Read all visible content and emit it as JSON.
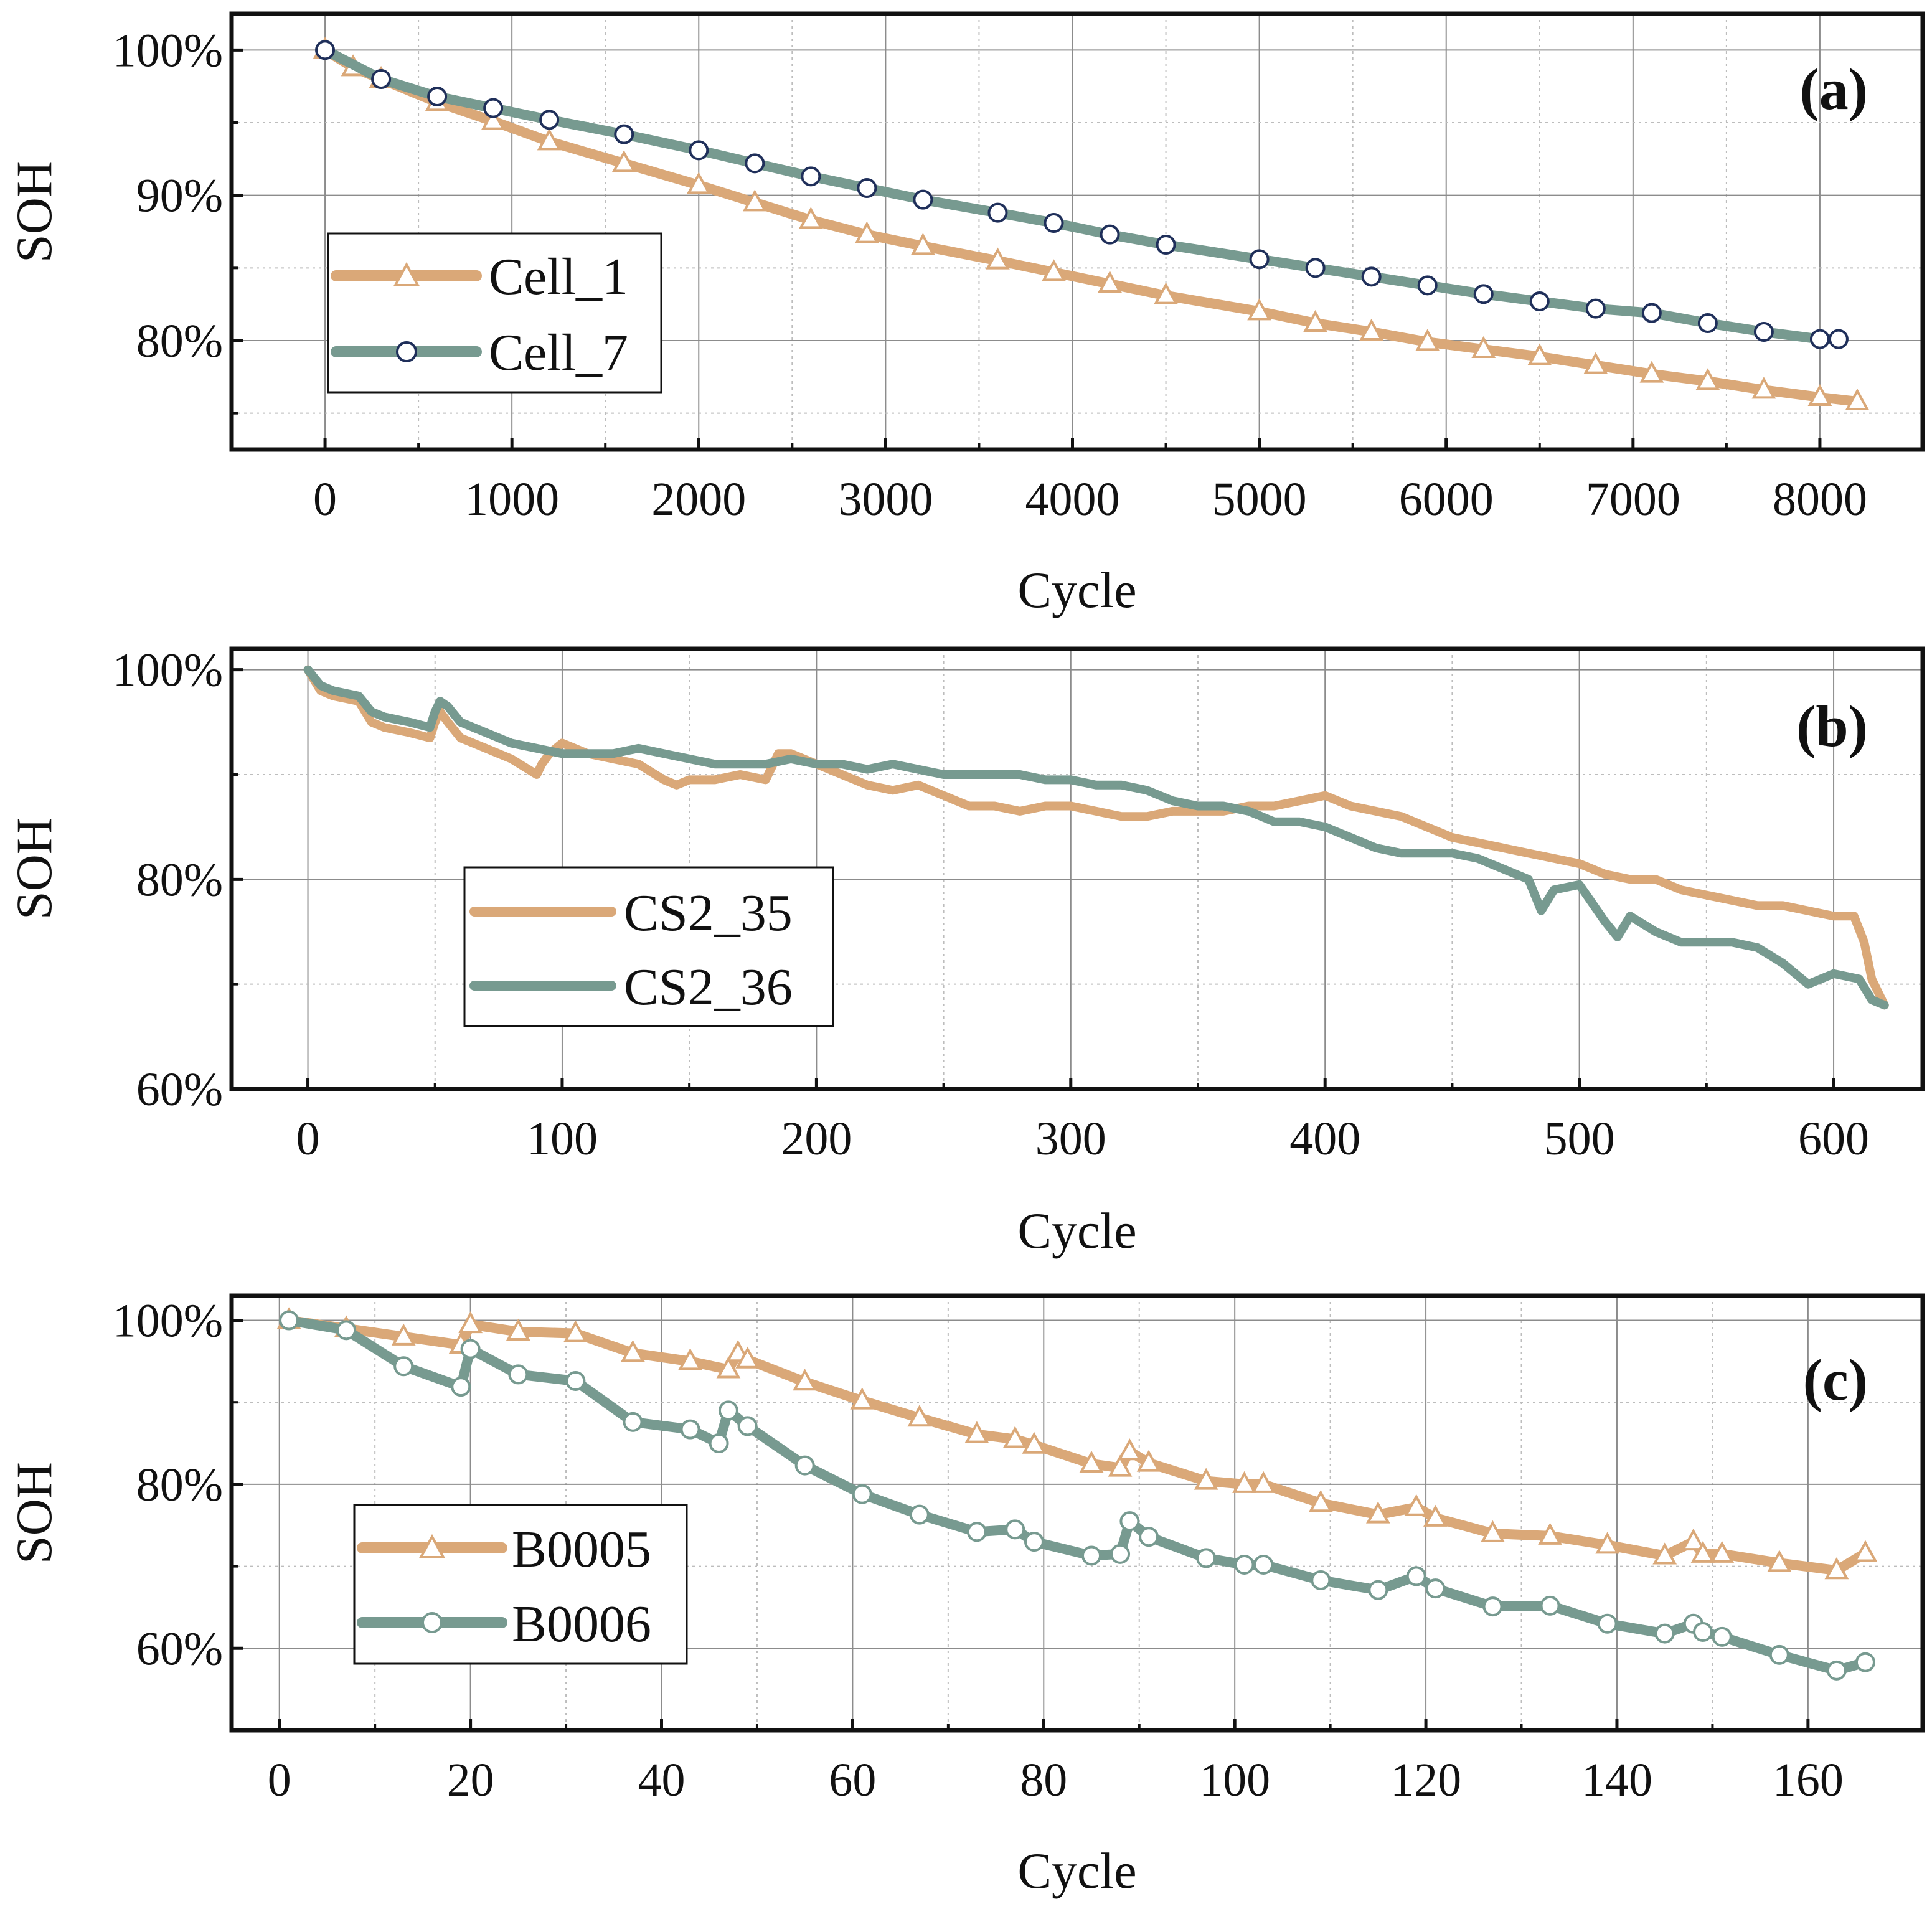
{
  "colors": {
    "orange": "#DAA878",
    "teal": "#779A90",
    "grid": "#8c8c8c",
    "frame": "#111111",
    "marker_edge_a": "#1f2f5a"
  },
  "chart_data": [
    {
      "id": "a",
      "type": "line",
      "panel_label": "(a)",
      "xlabel": "Cycle",
      "ylabel": "SOH",
      "xlim": [
        -500,
        8550
      ],
      "ylim": [
        72.5,
        102.5
      ],
      "xticks": [
        0,
        1000,
        2000,
        3000,
        4000,
        5000,
        6000,
        7000,
        8000
      ],
      "xtick_labels": [
        "0",
        "1000",
        "2000",
        "3000",
        "4000",
        "5000",
        "6000",
        "7000",
        "8000"
      ],
      "xminor": [
        500,
        1500,
        2500,
        3500,
        4500,
        5500,
        6500,
        7500
      ],
      "yticks": [
        80,
        90,
        100
      ],
      "ytick_labels": [
        "80%",
        "90%",
        "100%"
      ],
      "yminor": [
        75,
        85,
        95
      ],
      "legend_position": "center-left",
      "series": [
        {
          "name": "Cell_1",
          "legend_label": "Cell_1",
          "color": "orange",
          "marker": "triangle",
          "x": [
            0,
            150,
            300,
            600,
            900,
            1200,
            1600,
            2000,
            2300,
            2600,
            2900,
            3200,
            3600,
            3900,
            4200,
            4500,
            5000,
            5300,
            5600,
            5900,
            6200,
            6500,
            6800,
            7100,
            7400,
            7700,
            8000,
            8200
          ],
          "y": [
            100,
            98.8,
            98,
            96.4,
            95.1,
            93.7,
            92.2,
            90.7,
            89.5,
            88.3,
            87.3,
            86.5,
            85.5,
            84.7,
            83.9,
            83.1,
            82,
            81.2,
            80.6,
            79.9,
            79.4,
            78.9,
            78.3,
            77.7,
            77.2,
            76.6,
            76.1,
            75.8
          ]
        },
        {
          "name": "Cell_7",
          "legend_label": "Cell_7",
          "color": "teal",
          "marker": "circle",
          "x": [
            0,
            300,
            600,
            900,
            1200,
            1600,
            2000,
            2300,
            2600,
            2900,
            3200,
            3600,
            3900,
            4200,
            4500,
            5000,
            5300,
            5600,
            5900,
            6200,
            6500,
            6800,
            7100,
            7400,
            7700,
            8000,
            8100
          ],
          "y": [
            100,
            98,
            96.8,
            96,
            95.2,
            94.2,
            93.1,
            92.2,
            91.3,
            90.5,
            89.7,
            88.8,
            88.1,
            87.3,
            86.6,
            85.6,
            85,
            84.4,
            83.8,
            83.2,
            82.7,
            82.2,
            81.9,
            81.2,
            80.6,
            80.1,
            80.1
          ]
        }
      ]
    },
    {
      "id": "b",
      "type": "line",
      "panel_label": "(b)",
      "xlabel": "Cycle",
      "ylabel": "SOH",
      "xlim": [
        -30,
        635
      ],
      "ylim": [
        60,
        102
      ],
      "xticks": [
        0,
        100,
        200,
        300,
        400,
        500,
        600
      ],
      "xtick_labels": [
        "0",
        "100",
        "200",
        "300",
        "400",
        "500",
        "600"
      ],
      "xminor": [
        50,
        150,
        250,
        350,
        450,
        550
      ],
      "yticks": [
        60,
        80,
        100
      ],
      "ytick_labels": [
        "60%",
        "80%",
        "100%"
      ],
      "yminor": [
        70,
        90
      ],
      "legend_position": "center-left",
      "series": [
        {
          "name": "CS2_35",
          "legend_label": "CS2_35",
          "color": "orange",
          "marker": "none",
          "x": [
            0,
            5,
            10,
            20,
            25,
            30,
            40,
            48,
            50,
            52,
            55,
            60,
            70,
            80,
            90,
            92,
            95,
            100,
            110,
            120,
            130,
            140,
            145,
            150,
            160,
            170,
            180,
            185,
            190,
            200,
            210,
            220,
            230,
            240,
            250,
            260,
            270,
            280,
            290,
            300,
            310,
            320,
            330,
            340,
            350,
            360,
            370,
            380,
            390,
            400,
            410,
            420,
            430,
            440,
            450,
            460,
            470,
            480,
            490,
            500,
            510,
            520,
            530,
            540,
            550,
            560,
            570,
            580,
            590,
            600,
            608,
            612,
            615,
            620
          ],
          "y": [
            100,
            98,
            97.5,
            97,
            95,
            94.5,
            94,
            93.5,
            95,
            96,
            95,
            93.5,
            92.5,
            91.5,
            90,
            91,
            92,
            93,
            92,
            91.5,
            91,
            89.5,
            89,
            89.5,
            89.5,
            90,
            89.5,
            92,
            92,
            91,
            90,
            89,
            88.5,
            89,
            88,
            87,
            87,
            86.5,
            87,
            87,
            86.5,
            86,
            86,
            86.5,
            86.5,
            86.5,
            87,
            87,
            87.5,
            88,
            87,
            86.5,
            86,
            85,
            84,
            83.5,
            83,
            82.5,
            82,
            81.5,
            80.5,
            80,
            80,
            79,
            78.5,
            78,
            77.5,
            77.5,
            77,
            76.5,
            76.5,
            74,
            70.5,
            68
          ]
        },
        {
          "name": "CS2_36",
          "legend_label": "CS2_36",
          "color": "teal",
          "marker": "none",
          "x": [
            0,
            5,
            10,
            20,
            25,
            30,
            40,
            48,
            50,
            52,
            55,
            60,
            70,
            80,
            90,
            100,
            110,
            120,
            130,
            140,
            150,
            160,
            170,
            180,
            190,
            200,
            210,
            220,
            230,
            240,
            250,
            260,
            270,
            280,
            290,
            300,
            310,
            320,
            330,
            340,
            350,
            360,
            370,
            380,
            390,
            400,
            410,
            420,
            430,
            440,
            450,
            460,
            470,
            480,
            485,
            490,
            500,
            510,
            515,
            520,
            530,
            540,
            550,
            560,
            570,
            580,
            590,
            600,
            610,
            615,
            620
          ],
          "y": [
            100,
            98.5,
            98,
            97.5,
            96,
            95.5,
            95,
            94.5,
            96,
            97,
            96.5,
            95,
            94,
            93,
            92.5,
            92,
            92,
            92,
            92.5,
            92,
            91.5,
            91,
            91,
            91,
            91.5,
            91,
            91,
            90.5,
            91,
            90.5,
            90,
            90,
            90,
            90,
            89.5,
            89.5,
            89,
            89,
            88.5,
            87.5,
            87,
            87,
            86.5,
            85.5,
            85.5,
            85,
            84,
            83,
            82.5,
            82.5,
            82.5,
            82,
            81,
            80,
            77,
            79,
            79.5,
            76,
            74.5,
            76.5,
            75,
            74,
            74,
            74,
            73.5,
            72,
            70,
            71,
            70.5,
            68.5,
            68
          ]
        }
      ]
    },
    {
      "id": "c",
      "type": "line",
      "panel_label": "(c)",
      "xlabel": "Cycle",
      "ylabel": "SOH",
      "xlim": [
        -5,
        172
      ],
      "ylim": [
        50,
        103
      ],
      "xticks": [
        0,
        20,
        40,
        60,
        80,
        100,
        120,
        140,
        160
      ],
      "xtick_labels": [
        "0",
        "20",
        "40",
        "60",
        "80",
        "100",
        "120",
        "140",
        "160"
      ],
      "xminor": [
        10,
        30,
        50,
        70,
        90,
        110,
        130,
        150
      ],
      "yticks": [
        60,
        80,
        100
      ],
      "ytick_labels": [
        "60%",
        "80%",
        "100%"
      ],
      "yminor": [
        70,
        90
      ],
      "legend_position": "bottom-left",
      "series": [
        {
          "name": "B0005",
          "legend_label": "B0005",
          "color": "orange",
          "marker": "triangle",
          "x": [
            1,
            7,
            13,
            19,
            20,
            25,
            31,
            37,
            43,
            47,
            48,
            49,
            55,
            61,
            67,
            73,
            77,
            79,
            85,
            88,
            89,
            91,
            97,
            101,
            103,
            109,
            115,
            119,
            121,
            127,
            133,
            139,
            145,
            148,
            149,
            151,
            157,
            163,
            166
          ],
          "y": [
            100,
            99,
            98,
            97,
            99.5,
            98.6,
            98.4,
            96,
            95,
            94,
            96,
            95.2,
            92.5,
            90.2,
            88.1,
            86.1,
            85.5,
            84.8,
            82.5,
            82,
            84,
            82.6,
            80.4,
            80,
            80,
            77.7,
            76.3,
            77.2,
            75.9,
            74,
            73.7,
            72.6,
            71.3,
            73,
            71.5,
            71.5,
            70.4,
            69.5,
            71.6
          ]
        },
        {
          "name": "B0006",
          "legend_label": "B0006",
          "color": "teal",
          "marker": "circle",
          "x": [
            1,
            7,
            13,
            19,
            20,
            25,
            31,
            37,
            43,
            46,
            47,
            49,
            55,
            61,
            67,
            73,
            77,
            79,
            85,
            88,
            89,
            91,
            97,
            101,
            103,
            109,
            115,
            119,
            121,
            127,
            133,
            139,
            145,
            148,
            149,
            151,
            157,
            163,
            166
          ],
          "y": [
            100,
            98.8,
            94.4,
            91.9,
            96.5,
            93.4,
            92.6,
            87.6,
            86.7,
            85,
            89,
            87.1,
            82.3,
            78.8,
            76.3,
            74.2,
            74.5,
            73,
            71.3,
            71.5,
            75.5,
            73.6,
            71,
            70.2,
            70.2,
            68.3,
            67.1,
            68.8,
            67.3,
            65.1,
            65.2,
            63,
            61.8,
            63,
            62,
            61.4,
            59.2,
            57.3,
            58.3
          ]
        }
      ]
    }
  ]
}
